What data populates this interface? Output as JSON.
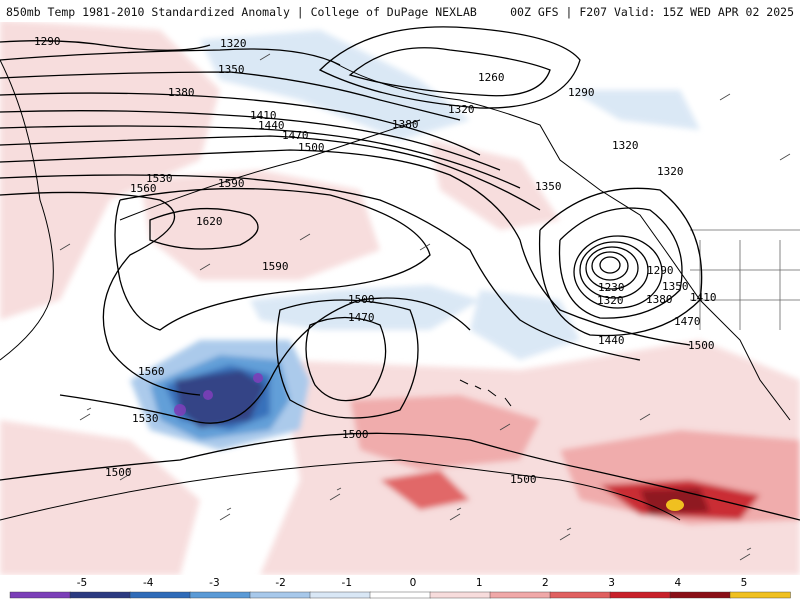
{
  "header": {
    "title_left": "850mb Temp 1981-2010 Standardized Anomaly | College of DuPage NEXLAB",
    "title_right": "00Z GFS | F207 Valid: 15Z WED APR 02 2025"
  },
  "contour_labels": {
    "l1290a": "1290",
    "l1320a": "1320",
    "l1350a": "1350",
    "l1380a": "1380",
    "l1410": "1410",
    "l1440": "1440",
    "l1470a": "1470",
    "l1500a": "1500",
    "l1530": "1530",
    "l1560a": "1560",
    "l1590a": "1590",
    "l1620": "1620",
    "l1590b": "1590",
    "l1260": "1260",
    "l1290b": "1290",
    "l1320b": "1320",
    "l1380b": "1380",
    "l1320c": "1320",
    "l1320d": "1320",
    "l1350b": "1350",
    "l1230": "1230",
    "l1290c": "1290",
    "l1350c": "1350",
    "l1320e": "1320",
    "l1380c": "1380",
    "l1410b": "1410",
    "l1470b": "1470",
    "l1440b": "1440",
    "l1500b": "1500",
    "l1500c": "1500",
    "l1470c": "1470",
    "l1560b": "1560",
    "l1530b": "1530",
    "l1500d": "1500",
    "l1500e": "1500",
    "l1500f": "1500"
  },
  "colorbar": {
    "ticks": [
      "-5",
      "-4",
      "-3",
      "-2",
      "-1",
      "0",
      "1",
      "2",
      "3",
      "4",
      "5"
    ],
    "colors": [
      "#7b3fb8",
      "#2b3a80",
      "#2f6bb8",
      "#5a9ad6",
      "#a7c8ea",
      "#d9e7f5",
      "#ffffff",
      "#f7dcdc",
      "#f0a8a8",
      "#e06060",
      "#c8202a",
      "#8a0f17",
      "#f0c020"
    ]
  }
}
